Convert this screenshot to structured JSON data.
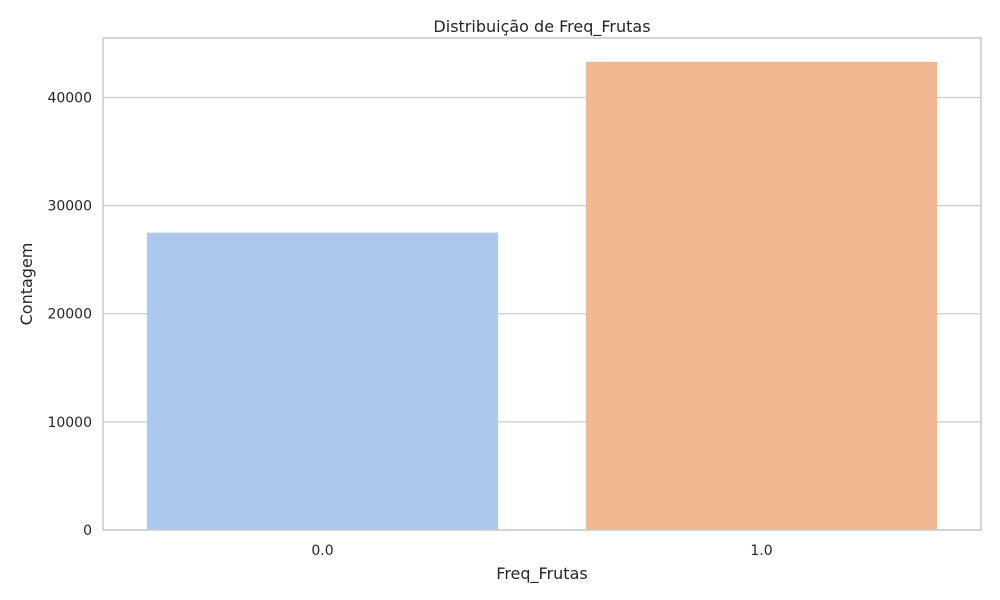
{
  "chart_data": {
    "type": "bar",
    "title": "Distribuição de Freq_Frutas",
    "xlabel": "Freq_Frutas",
    "ylabel": "Contagem",
    "categories": [
      "0.0",
      "1.0"
    ],
    "values": [
      27500,
      43300
    ],
    "colors": [
      "#abc9ec",
      "#f0b791"
    ],
    "ylim": [
      0,
      45500
    ],
    "yticks": [
      0,
      10000,
      20000,
      30000,
      40000
    ],
    "ytick_labels": [
      "0",
      "10000",
      "20000",
      "30000",
      "40000"
    ],
    "grid": true,
    "legend": "none"
  }
}
